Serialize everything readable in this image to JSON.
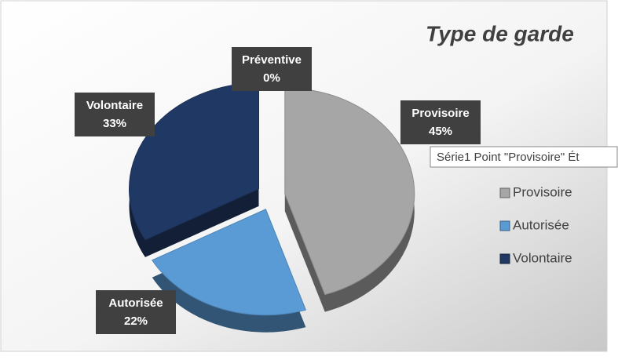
{
  "chart_data": {
    "type": "pie",
    "title": "Type de garde",
    "categories": [
      "Provisoire",
      "Autorisée",
      "Volontaire",
      "Préventive"
    ],
    "values": [
      45,
      22,
      33,
      0
    ],
    "value_labels": [
      "45%",
      "22%",
      "33%",
      "0%"
    ],
    "colors": [
      "#a6a6a6",
      "#5b9bd5",
      "#203864",
      "#ed7d31"
    ],
    "legend": [
      "Provisoire",
      "Autorisée",
      "Volontaire"
    ],
    "tooltip": "Série1 Point \"Provisoire\" Ét"
  }
}
